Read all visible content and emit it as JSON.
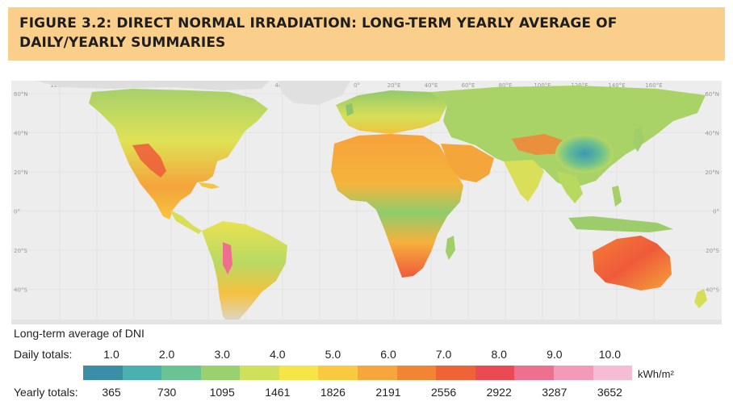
{
  "figure": {
    "title": "FIGURE 3.2: DIRECT NORMAL IRRADIATION: LONG-TERM YEARLY AVERAGE OF DAILY/YEARLY SUMMARIES"
  },
  "map": {
    "longitude_labels": [
      "160°W",
      "140°W",
      "120°W",
      "100°W",
      "80°W",
      "60°W",
      "40°W",
      "20°W",
      "0°",
      "20°E",
      "40°E",
      "60°E",
      "80°E",
      "100°E",
      "120°E",
      "140°E",
      "160°E"
    ],
    "latitude_labels": [
      "60°N",
      "40°N",
      "20°N",
      "0°",
      "20°S",
      "40°S"
    ],
    "colors": {
      "ocean": "#ededed",
      "polar": "#e2e2e2",
      "high_dni": "#ef5a3a",
      "mid_dni": "#f5b53c",
      "low_dni": "#8fcc6c",
      "very_low_dni": "#3a98b3"
    }
  },
  "legend": {
    "title": "Long-term average of DNI",
    "daily_label": "Daily totals:",
    "daily_values": [
      "1.0",
      "2.0",
      "3.0",
      "4.0",
      "5.0",
      "6.0",
      "7.0",
      "8.0",
      "9.0",
      "10.0"
    ],
    "yearly_label": "Yearly totals:",
    "yearly_values": [
      "365",
      "730",
      "1095",
      "1461",
      "1826",
      "2191",
      "2556",
      "2922",
      "3287",
      "3652"
    ],
    "unit": "kWh/m²",
    "colors": [
      "#3b8ea5",
      "#4bb1b0",
      "#69c392",
      "#9bd06e",
      "#cfe05a",
      "#f5e547",
      "#f9c93f",
      "#f6a63a",
      "#f28534",
      "#ef6436",
      "#ec4a52",
      "#ee6f8e",
      "#f29ab8",
      "#f5bcd3"
    ]
  }
}
